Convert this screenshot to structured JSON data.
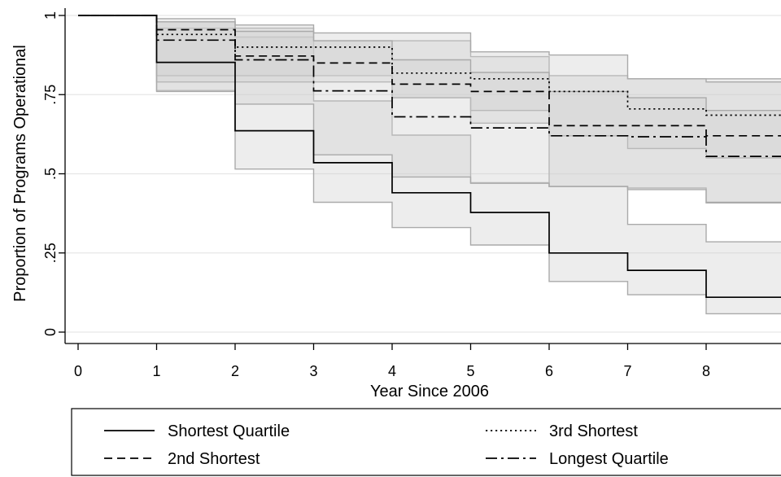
{
  "chart_data": {
    "type": "line",
    "ylabel": "Proportion of Programs Operational",
    "xlabel": "Year Since 2006",
    "xticks": [
      0,
      1,
      2,
      3,
      4,
      5,
      6,
      7,
      8
    ],
    "yticks": [
      {
        "value": 0,
        "label": "0"
      },
      {
        "value": 0.25,
        "label": ".25"
      },
      {
        "value": 0.5,
        "label": ".5"
      },
      {
        "value": 0.75,
        "label": ".75"
      },
      {
        "value": 1,
        "label": "1"
      }
    ],
    "xlim": [
      0,
      9
    ],
    "ylim": [
      0,
      1
    ],
    "grid": true,
    "legend_placement": "bottom",
    "series": [
      {
        "name": "Shortest Quartile",
        "dash": "solid",
        "x": [
          0,
          1,
          2,
          3,
          4,
          5,
          6,
          7,
          8
        ],
        "y": [
          1,
          0.852,
          0.636,
          0.535,
          0.44,
          0.378,
          0.25,
          0.195,
          0.11
        ],
        "ci_lower": [
          1,
          0.763,
          0.515,
          0.41,
          0.33,
          0.275,
          0.16,
          0.118,
          0.058
        ],
        "ci_upper": [
          1,
          0.98,
          0.932,
          0.73,
          0.622,
          0.472,
          0.46,
          0.34,
          0.285
        ]
      },
      {
        "name": "2nd Shortest",
        "dash": "dashed",
        "x": [
          0,
          1,
          2,
          3,
          4,
          5,
          6,
          7,
          8
        ],
        "y": [
          1,
          0.955,
          0.872,
          0.85,
          0.783,
          0.76,
          0.652,
          0.652,
          0.62
        ],
        "ci_lower": [
          1,
          0.81,
          0.81,
          0.81,
          0.74,
          0.66,
          0.46,
          0.455,
          0.408
        ],
        "ci_upper": [
          1,
          0.96,
          0.96,
          0.92,
          0.92,
          0.87,
          0.81,
          0.8,
          0.8
        ]
      },
      {
        "name": "3rd Shortest",
        "dash": "dotted",
        "x": [
          0,
          1,
          2,
          3,
          4,
          5,
          6,
          7,
          8
        ],
        "y": [
          1,
          0.94,
          0.9,
          0.9,
          0.818,
          0.8,
          0.76,
          0.705,
          0.685
        ],
        "ci_lower": [
          1,
          0.79,
          0.79,
          0.79,
          0.74,
          0.7,
          0.62,
          0.58,
          0.55
        ],
        "ci_upper": [
          1,
          0.99,
          0.97,
          0.945,
          0.945,
          0.885,
          0.875,
          0.8,
          0.79
        ]
      },
      {
        "name": "Longest Quartile",
        "dash": "dashdot",
        "x": [
          0,
          1,
          2,
          3,
          4,
          5,
          6,
          7,
          8
        ],
        "y": [
          1,
          0.922,
          0.86,
          0.762,
          0.68,
          0.645,
          0.62,
          0.617,
          0.555
        ],
        "ci_lower": [
          1,
          0.76,
          0.72,
          0.56,
          0.49,
          0.47,
          0.46,
          0.45,
          0.41
        ],
        "ci_upper": [
          1,
          0.98,
          0.95,
          0.92,
          0.86,
          0.82,
          0.76,
          0.74,
          0.7
        ]
      }
    ]
  },
  "legend": {
    "items": [
      {
        "label": "Shortest Quartile",
        "dash": "solid"
      },
      {
        "label": "3rd Shortest",
        "dash": "dotted"
      },
      {
        "label": "2nd Shortest",
        "dash": "dashed"
      },
      {
        "label": "Longest Quartile",
        "dash": "dashdot"
      }
    ]
  },
  "colors": {
    "band_fill": "#d0d0d0",
    "band_stroke": "#aaaaaa",
    "line": "#000000",
    "grid": "#e6e6e6",
    "background": "#ffffff"
  }
}
